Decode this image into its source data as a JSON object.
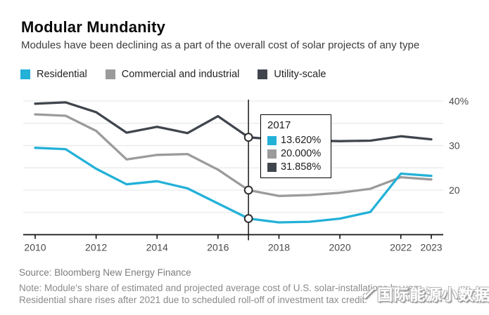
{
  "header": {
    "title": "Modular Mundanity",
    "subtitle": "Modules have been declining as a part of the overall cost of solar projects of any type"
  },
  "legend": {
    "items": [
      {
        "label": "Residential",
        "color": "#23b1d8"
      },
      {
        "label": "Commercial and industrial",
        "color": "#9b9b9b"
      },
      {
        "label": "Utility-scale",
        "color": "#40454d"
      }
    ]
  },
  "tooltip": {
    "year": "2017",
    "rows": [
      {
        "series": "Residential",
        "value": "13.620%",
        "color": "#23b1d8"
      },
      {
        "series": "Commercial and industrial",
        "value": "20.000%",
        "color": "#9b9b9b"
      },
      {
        "series": "Utility-scale",
        "value": "31.858%",
        "color": "#40454d"
      }
    ]
  },
  "chart_data": {
    "type": "line",
    "title": "Modular Mundanity",
    "x": [
      2010,
      2011,
      2012,
      2013,
      2014,
      2015,
      2016,
      2017,
      2018,
      2019,
      2020,
      2021,
      2022,
      2023
    ],
    "series": [
      {
        "name": "Utility-scale",
        "color": "#40454d",
        "values": [
          39.4,
          39.7,
          37.5,
          32.9,
          34.2,
          32.8,
          36.6,
          31.858,
          31.3,
          31.1,
          31.0,
          31.1,
          32.1,
          31.4
        ]
      },
      {
        "name": "Commercial and industrial",
        "color": "#9b9b9b",
        "values": [
          37.0,
          36.7,
          33.3,
          26.9,
          27.9,
          28.1,
          24.6,
          20.0,
          18.7,
          18.9,
          19.4,
          20.3,
          22.9,
          22.4
        ]
      },
      {
        "name": "Residential",
        "color": "#23b1d8",
        "values": [
          29.5,
          29.2,
          24.8,
          21.3,
          22.0,
          20.4,
          17.0,
          13.62,
          12.75,
          12.9,
          13.6,
          15.1,
          23.7,
          23.2
        ]
      }
    ],
    "ylim": [
      10,
      40
    ],
    "y_gridlines": [
      15,
      20,
      25,
      30,
      35,
      40
    ],
    "y_axis_labels": [
      {
        "value": 40,
        "label": "40%"
      },
      {
        "value": 30,
        "label": "30"
      },
      {
        "value": 20,
        "label": "20"
      }
    ],
    "x_tick_labels": [
      "2010",
      "2012",
      "2014",
      "2016",
      "2018",
      "2020",
      "2022",
      "2023"
    ],
    "highlight_x": 2017,
    "grid": true,
    "legend_position": "top",
    "unit": "%"
  },
  "footer": {
    "source": "Source: Bloomberg New Energy Finance",
    "note_line1": "Note: Module's share of estimated and projected average cost of U.S. solar-installations by year.",
    "note_line2": "Residential share rises after 2021 due to scheduled roll-off of investment tax credit."
  },
  "watermark": {
    "logo": "✓",
    "text": "国际能源小数据"
  }
}
